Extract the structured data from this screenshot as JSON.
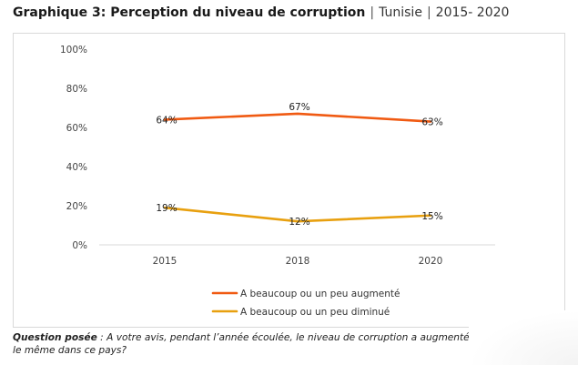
{
  "title": {
    "main": "Graphique 3: Perception du niveau de corruption",
    "country": "Tunisie",
    "years": "2015- 2020"
  },
  "note": {
    "question_label": "Question posée",
    "question_text": " : A votre avis, pendant l’année écoulée, le niveau de corruption a augmenté, diminué ou resté le même dans ce pays?"
  },
  "colors": {
    "augmente": "#f05a12",
    "diminue": "#e8a00f",
    "grid": "#d9d9d9",
    "axis_text": "#444444"
  },
  "chart_data": {
    "type": "line",
    "categories": [
      "2015",
      "2018",
      "2020"
    ],
    "y_ticks": [
      "0%",
      "20%",
      "40%",
      "60%",
      "80%",
      "100%"
    ],
    "ylim": [
      0,
      100
    ],
    "legend_position": "bottom",
    "grid": "horizontal-baseline-only",
    "series": [
      {
        "name": "A beaucoup ou un peu augmenté",
        "values": [
          64,
          67,
          63
        ],
        "labels": [
          "64%",
          "67%",
          "63%"
        ],
        "color": "#f05a12"
      },
      {
        "name": "A beaucoup ou un peu diminué",
        "values": [
          19,
          12,
          15
        ],
        "labels": [
          "19%",
          "12%",
          "15%"
        ],
        "color": "#e8a00f"
      }
    ]
  }
}
